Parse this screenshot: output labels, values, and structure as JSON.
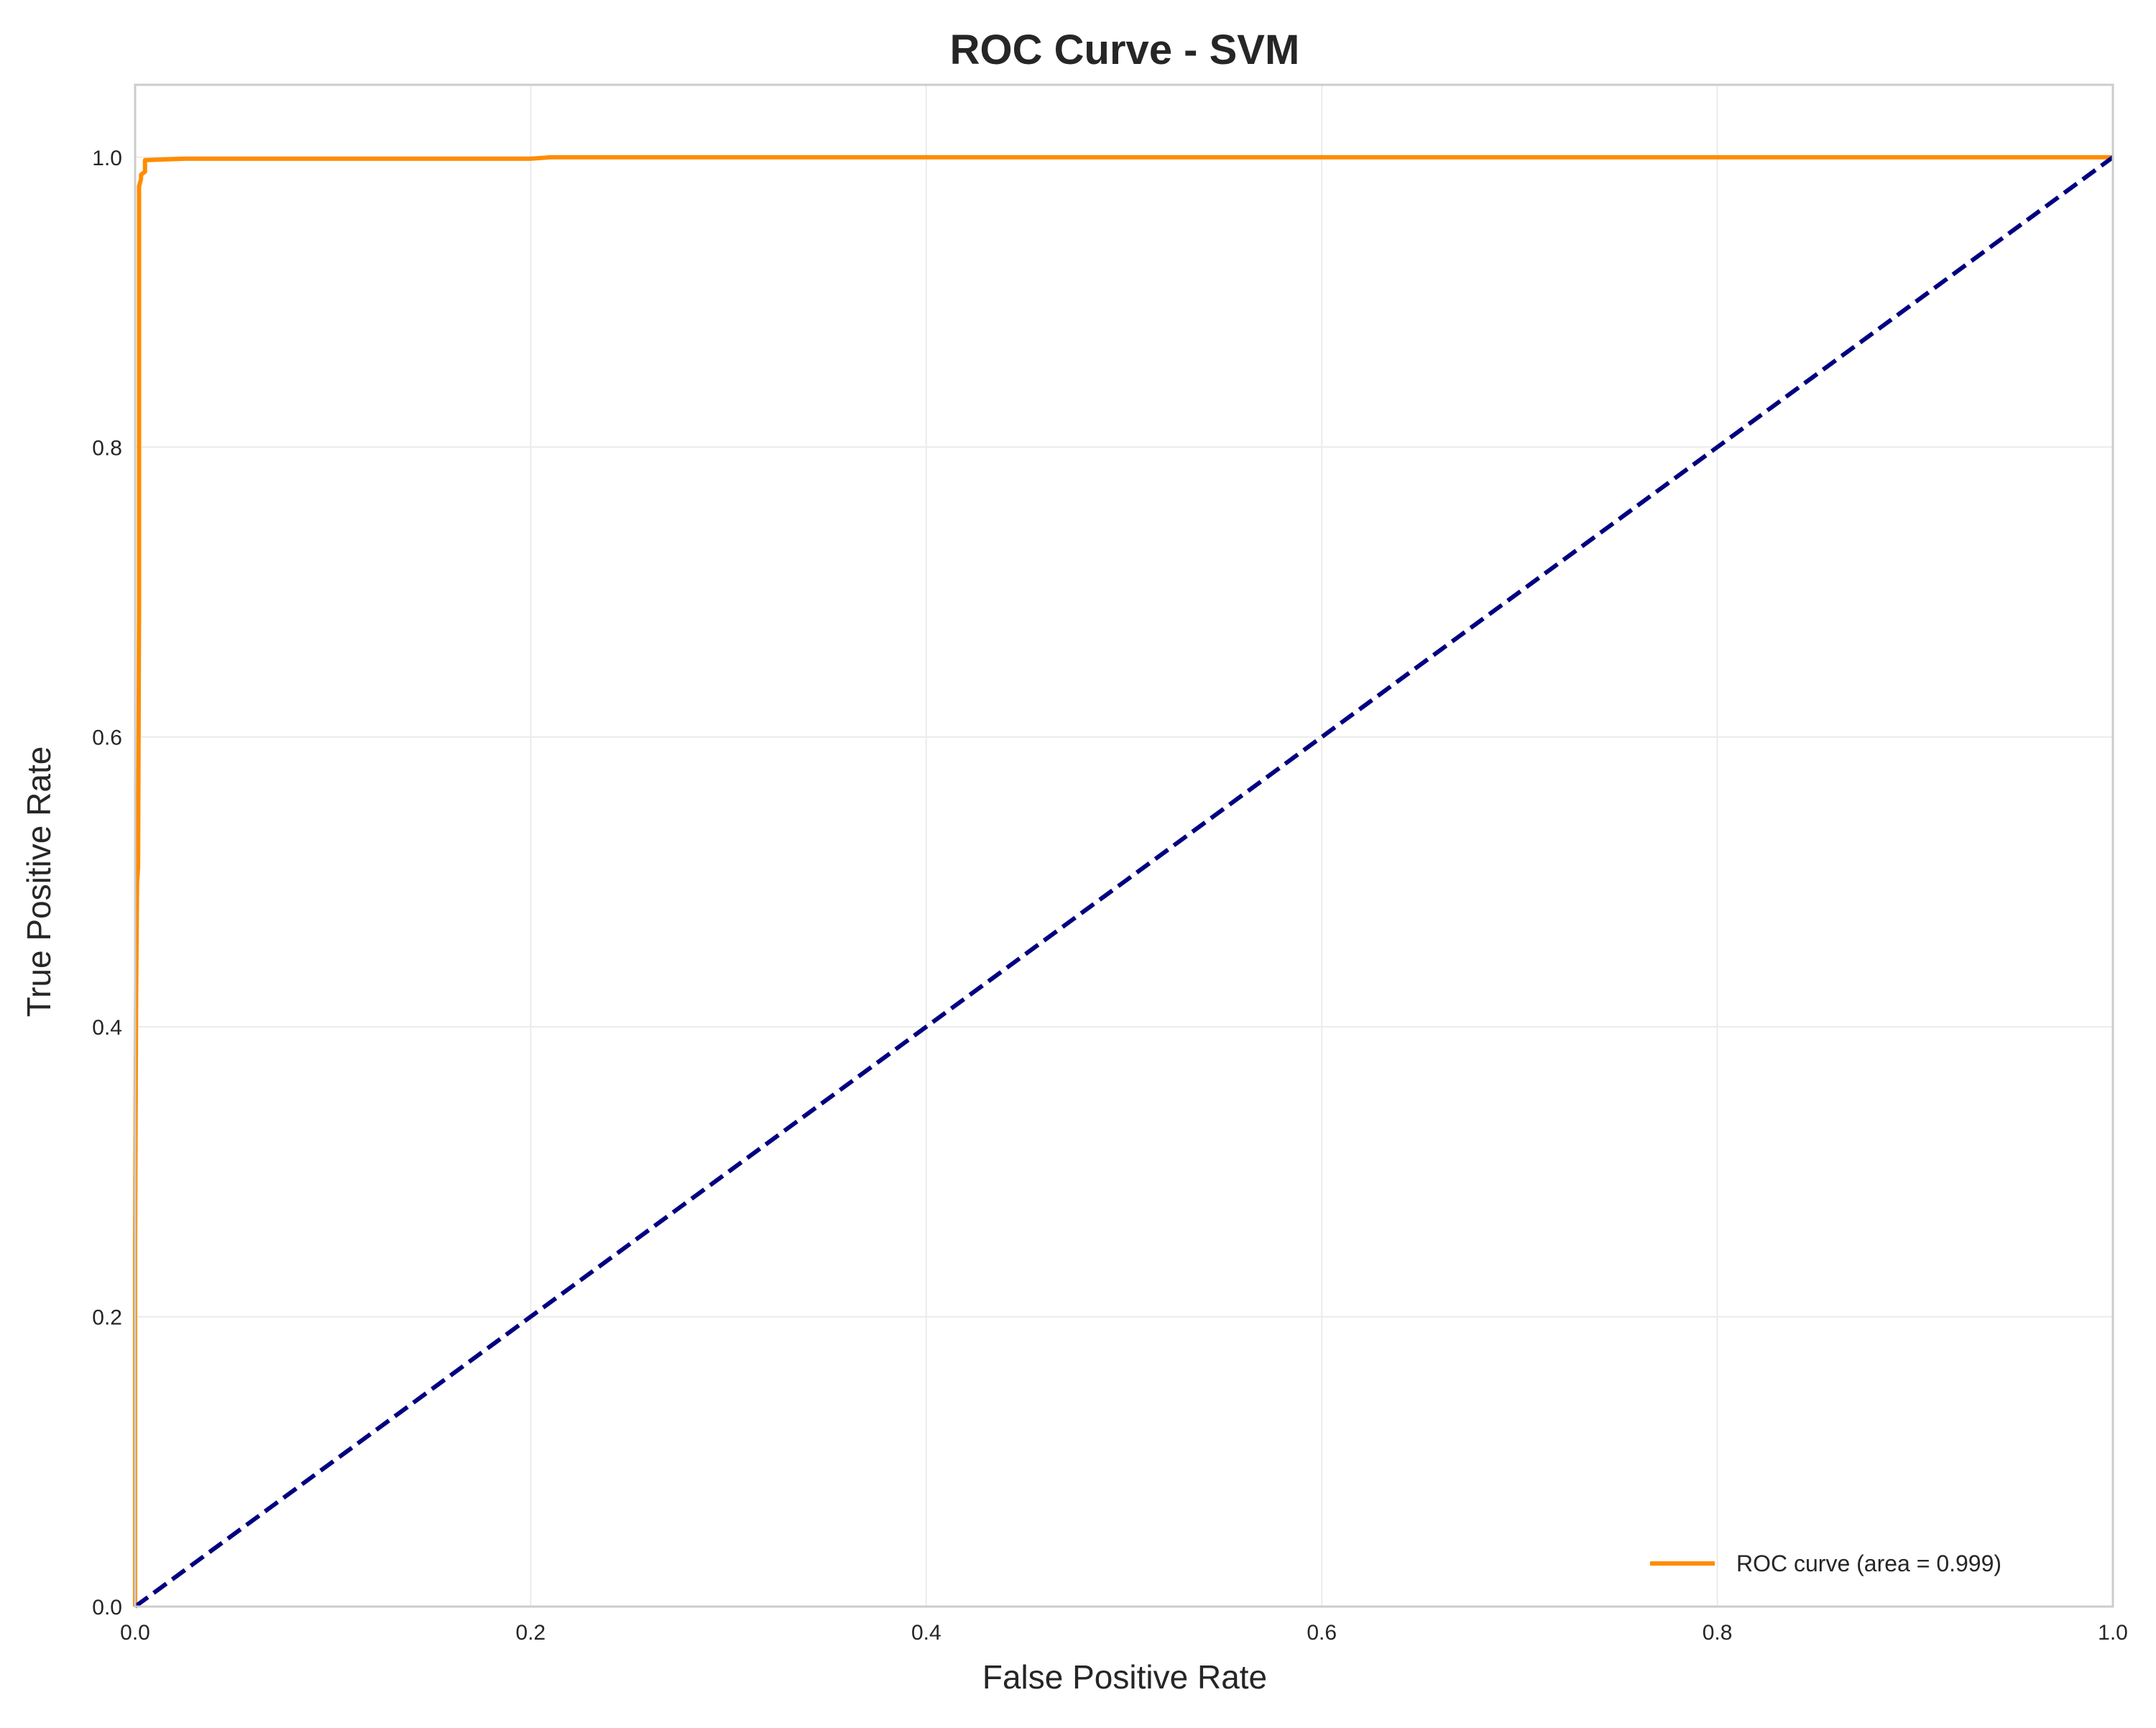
{
  "chart_data": {
    "type": "line",
    "title": "ROC Curve - SVM",
    "xlabel": "False Positive Rate",
    "ylabel": "True Positive Rate",
    "xlim": [
      0.0,
      1.0
    ],
    "ylim": [
      0.0,
      1.05
    ],
    "x_ticks": [
      "0.0",
      "0.2",
      "0.4",
      "0.6",
      "0.8",
      "1.0"
    ],
    "y_ticks": [
      "0.0",
      "0.2",
      "0.4",
      "0.6",
      "0.8",
      "1.0"
    ],
    "grid": true,
    "legend_position": "lower-right",
    "series": [
      {
        "name": "ROC curve (area = 0.999)",
        "color": "#ff8c00",
        "style": "solid",
        "x": [
          0.0,
          0.0,
          0.0005,
          0.001,
          0.0015,
          0.002,
          0.002,
          0.003,
          0.003,
          0.005,
          0.005,
          0.025,
          0.2,
          0.21,
          1.0
        ],
        "y": [
          0.0,
          0.25,
          0.42,
          0.5,
          0.51,
          0.69,
          0.98,
          0.985,
          0.988,
          0.99,
          0.998,
          0.999,
          0.999,
          1.0,
          1.0
        ]
      },
      {
        "name": "",
        "color": "#000080",
        "style": "dashed",
        "x": [
          0.0,
          1.0
        ],
        "y": [
          0.0,
          1.0
        ]
      }
    ]
  }
}
